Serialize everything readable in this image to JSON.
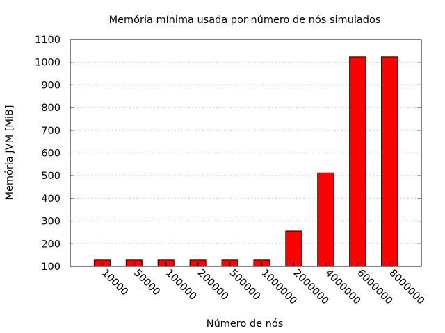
{
  "chart_data": {
    "type": "bar",
    "title": "Memória mínima usada por número de nós simulados",
    "xlabel": "Número de nós",
    "ylabel": "Memória JVM [MiB]",
    "categories": [
      "10000",
      "50000",
      "100000",
      "200000",
      "500000",
      "1000000",
      "2000000",
      "4000000",
      "6000000",
      "8000000"
    ],
    "values": [
      128,
      128,
      128,
      128,
      128,
      128,
      256,
      512,
      1024,
      1024
    ],
    "ylim": [
      100,
      1100
    ],
    "yticks": [
      100,
      200,
      300,
      400,
      500,
      600,
      700,
      800,
      900,
      1000,
      1100
    ],
    "grid": true,
    "legend": "none",
    "bar_color": "#ff0000"
  }
}
